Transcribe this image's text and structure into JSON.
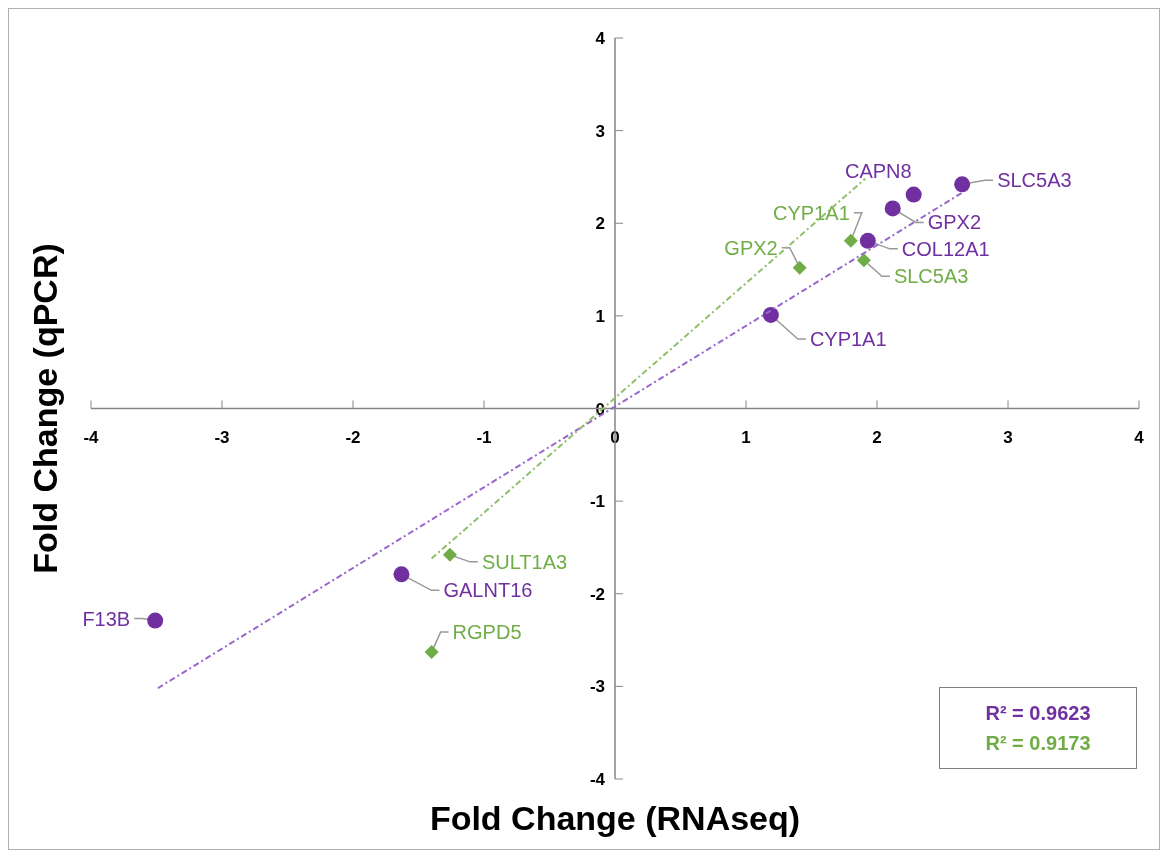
{
  "chart_data": {
    "type": "scatter",
    "xlabel": "Fold Change (RNAseq)",
    "ylabel": "Fold Change (qPCR)",
    "xlim": [
      -4,
      4
    ],
    "ylim": [
      -4,
      4
    ],
    "xticks": [
      -4,
      -3,
      -2,
      -1,
      0,
      1,
      2,
      3,
      4
    ],
    "yticks": [
      -4,
      -3,
      -2,
      -1,
      0,
      1,
      2,
      3,
      4
    ],
    "grid": false,
    "series": [
      {
        "color": "#7030a0",
        "marker": "circle",
        "x": [
          2.65,
          2.28,
          2.12,
          1.93,
          1.19,
          -1.63,
          -3.51
        ],
        "values": [
          2.42,
          2.31,
          2.16,
          1.81,
          1.01,
          -1.79,
          -2.29
        ]
      },
      {
        "color": "#70ad47",
        "marker": "diamond",
        "x": [
          1.8,
          1.41,
          1.9,
          -1.26,
          -1.4
        ],
        "values": [
          1.81,
          1.52,
          1.6,
          -1.58,
          -2.63
        ]
      },
      {
        "type": "line",
        "color": "#9966cc",
        "line_style": "dashed",
        "x": [
          -3.49,
          2.65
        ],
        "values": [
          -3.02,
          2.33
        ]
      },
      {
        "type": "line",
        "color": "#8fbf6a",
        "line_style": "dashed",
        "x": [
          -1.4,
          1.91
        ],
        "values": [
          -1.62,
          2.48
        ]
      }
    ],
    "annotations": [
      {
        "text": "SLC5A3",
        "x": 2.65,
        "y": 2.42
      },
      {
        "text": "CAPN8",
        "x": 2.28,
        "y": 2.31
      },
      {
        "text": "GPX2",
        "x": 2.12,
        "y": 2.16
      },
      {
        "text": "COL12A1",
        "x": 1.93,
        "y": 1.81
      },
      {
        "text": "CYP1A1",
        "x": 1.19,
        "y": 1.01
      },
      {
        "text": "GALNT16",
        "x": -1.63,
        "y": -1.79
      },
      {
        "text": "F13B",
        "x": -3.51,
        "y": -2.29
      },
      {
        "text": "CYP1A1",
        "x": 1.8,
        "y": 1.81
      },
      {
        "text": "GPX2",
        "x": 1.41,
        "y": 1.52
      },
      {
        "text": "SLC5A3",
        "x": 1.9,
        "y": 1.6
      },
      {
        "text": "SULT1A3",
        "x": -1.26,
        "y": -1.58
      },
      {
        "text": "RGPD5",
        "x": -1.4,
        "y": -2.63
      },
      "R² = 0.9623",
      "R² = 0.9173"
    ]
  }
}
